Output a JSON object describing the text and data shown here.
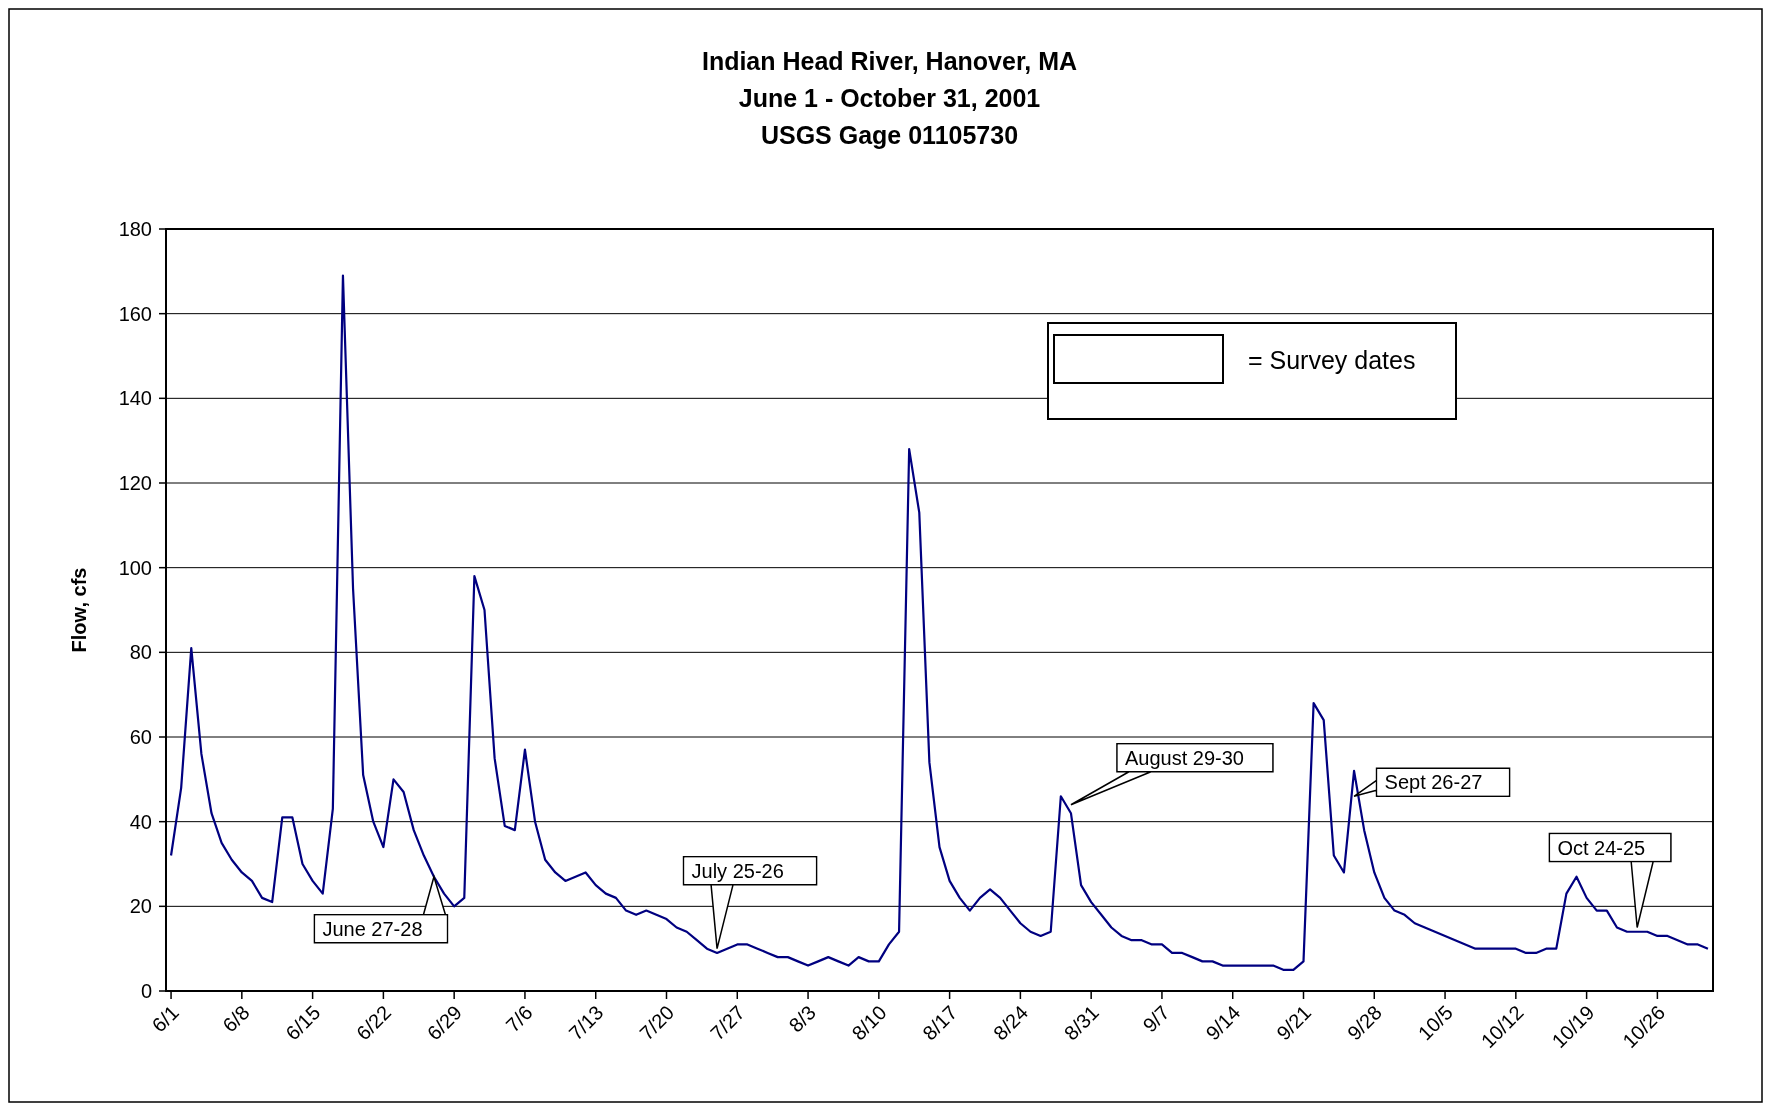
{
  "chart_data": {
    "type": "line",
    "title": "Indian Head River, Hanover, MA\nJune 1 - October 31, 2001\nUSGS Gage 01105730",
    "ylabel": "Flow, cfs",
    "x": [
      "2001-06-01",
      "2001-06-02",
      "2001-06-03",
      "2001-06-04",
      "2001-06-05",
      "2001-06-06",
      "2001-06-07",
      "2001-06-08",
      "2001-06-09",
      "2001-06-10",
      "2001-06-11",
      "2001-06-12",
      "2001-06-13",
      "2001-06-14",
      "2001-06-15",
      "2001-06-16",
      "2001-06-17",
      "2001-06-18",
      "2001-06-19",
      "2001-06-20",
      "2001-06-21",
      "2001-06-22",
      "2001-06-23",
      "2001-06-24",
      "2001-06-25",
      "2001-06-26",
      "2001-06-27",
      "2001-06-28",
      "2001-06-29",
      "2001-06-30",
      "2001-07-01",
      "2001-07-02",
      "2001-07-03",
      "2001-07-04",
      "2001-07-05",
      "2001-07-06",
      "2001-07-07",
      "2001-07-08",
      "2001-07-09",
      "2001-07-10",
      "2001-07-11",
      "2001-07-12",
      "2001-07-13",
      "2001-07-14",
      "2001-07-15",
      "2001-07-16",
      "2001-07-17",
      "2001-07-18",
      "2001-07-19",
      "2001-07-20",
      "2001-07-21",
      "2001-07-22",
      "2001-07-23",
      "2001-07-24",
      "2001-07-25",
      "2001-07-26",
      "2001-07-27",
      "2001-07-28",
      "2001-07-29",
      "2001-07-30",
      "2001-07-31",
      "2001-08-01",
      "2001-08-02",
      "2001-08-03",
      "2001-08-04",
      "2001-08-05",
      "2001-08-06",
      "2001-08-07",
      "2001-08-08",
      "2001-08-09",
      "2001-08-10",
      "2001-08-11",
      "2001-08-12",
      "2001-08-13",
      "2001-08-14",
      "2001-08-15",
      "2001-08-16",
      "2001-08-17",
      "2001-08-18",
      "2001-08-19",
      "2001-08-20",
      "2001-08-21",
      "2001-08-22",
      "2001-08-23",
      "2001-08-24",
      "2001-08-25",
      "2001-08-26",
      "2001-08-27",
      "2001-08-28",
      "2001-08-29",
      "2001-08-30",
      "2001-08-31",
      "2001-09-01",
      "2001-09-02",
      "2001-09-03",
      "2001-09-04",
      "2001-09-05",
      "2001-09-06",
      "2001-09-07",
      "2001-09-08",
      "2001-09-09",
      "2001-09-10",
      "2001-09-11",
      "2001-09-12",
      "2001-09-13",
      "2001-09-14",
      "2001-09-15",
      "2001-09-16",
      "2001-09-17",
      "2001-09-18",
      "2001-09-19",
      "2001-09-20",
      "2001-09-21",
      "2001-09-22",
      "2001-09-23",
      "2001-09-24",
      "2001-09-25",
      "2001-09-26",
      "2001-09-27",
      "2001-09-28",
      "2001-09-29",
      "2001-09-30",
      "2001-10-01",
      "2001-10-02",
      "2001-10-03",
      "2001-10-04",
      "2001-10-05",
      "2001-10-06",
      "2001-10-07",
      "2001-10-08",
      "2001-10-09",
      "2001-10-10",
      "2001-10-11",
      "2001-10-12",
      "2001-10-13",
      "2001-10-14",
      "2001-10-15",
      "2001-10-16",
      "2001-10-17",
      "2001-10-18",
      "2001-10-19",
      "2001-10-20",
      "2001-10-21",
      "2001-10-22",
      "2001-10-23",
      "2001-10-24",
      "2001-10-25",
      "2001-10-26",
      "2001-10-27",
      "2001-10-28",
      "2001-10-29",
      "2001-10-30",
      "2001-10-31"
    ],
    "series": [
      {
        "color": "#000080",
        "values": [
          32,
          48,
          81,
          56,
          42,
          35,
          31,
          28,
          26,
          22,
          21,
          41,
          41,
          30,
          26,
          23,
          43,
          169,
          95,
          51,
          40,
          34,
          50,
          47,
          38,
          32,
          27,
          23,
          20,
          22,
          98,
          90,
          55,
          39,
          38,
          57,
          40,
          31,
          28,
          26,
          27,
          28,
          25,
          23,
          22,
          19,
          18,
          19,
          18,
          17,
          15,
          14,
          12,
          10,
          9,
          10,
          11,
          11,
          10,
          9,
          8,
          8,
          7,
          6,
          7,
          8,
          7,
          6,
          8,
          7,
          7,
          11,
          14,
          128,
          113,
          54,
          34,
          26,
          22,
          19,
          22,
          24,
          22,
          19,
          16,
          14,
          13,
          14,
          46,
          42,
          25,
          21,
          18,
          15,
          13,
          12,
          12,
          11,
          11,
          9,
          9,
          8,
          7,
          7,
          6,
          6,
          6,
          6,
          6,
          6,
          5,
          5,
          7,
          68,
          64,
          32,
          28,
          52,
          38,
          28,
          22,
          19,
          18,
          16,
          15,
          14,
          13,
          12,
          11,
          10,
          10,
          10,
          10,
          10,
          9,
          9,
          10,
          10,
          23,
          27,
          22,
          19,
          19,
          15,
          14,
          14,
          14,
          13,
          13,
          12,
          11,
          11,
          10
        ]
      }
    ],
    "xlim": [
      "2001-05-31T12:00",
      "2001-10-31T12:00"
    ],
    "xticks": [
      {
        "value": "2001-06-01",
        "label": "6/1"
      },
      {
        "value": "2001-06-08",
        "label": "6/8"
      },
      {
        "value": "2001-06-15",
        "label": "6/15"
      },
      {
        "value": "2001-06-22",
        "label": "6/22"
      },
      {
        "value": "2001-06-29",
        "label": "6/29"
      },
      {
        "value": "2001-07-06",
        "label": "7/6"
      },
      {
        "value": "2001-07-13",
        "label": "7/13"
      },
      {
        "value": "2001-07-20",
        "label": "7/20"
      },
      {
        "value": "2001-07-27",
        "label": "7/27"
      },
      {
        "value": "2001-08-03",
        "label": "8/3"
      },
      {
        "value": "2001-08-10",
        "label": "8/10"
      },
      {
        "value": "2001-08-17",
        "label": "8/17"
      },
      {
        "value": "2001-08-24",
        "label": "8/24"
      },
      {
        "value": "2001-08-31",
        "label": "8/31"
      },
      {
        "value": "2001-09-07",
        "label": "9/7"
      },
      {
        "value": "2001-09-14",
        "label": "9/14"
      },
      {
        "value": "2001-09-21",
        "label": "9/21"
      },
      {
        "value": "2001-09-28",
        "label": "9/28"
      },
      {
        "value": "2001-10-05",
        "label": "10/5"
      },
      {
        "value": "2001-10-12",
        "label": "10/12"
      },
      {
        "value": "2001-10-19",
        "label": "10/19"
      },
      {
        "value": "2001-10-26",
        "label": "10/26"
      }
    ],
    "ylim": [
      0,
      180
    ],
    "yticks": [
      0,
      20,
      40,
      60,
      80,
      100,
      120,
      140,
      160,
      180
    ],
    "grid": "y",
    "annotations": [
      "= Survey dates",
      {
        "text": "June 27-28",
        "x": "2001-06-27",
        "y": 27
      },
      {
        "text": "July 25-26",
        "x": "2001-07-25",
        "y": 10
      },
      {
        "text": "August 29-30",
        "x": "2001-08-29",
        "y": 44
      },
      {
        "text": "Sept 26-27",
        "x": "2001-09-26",
        "y": 46
      },
      {
        "text": "Oct 24-25",
        "x": "2001-10-24",
        "y": 15
      }
    ]
  }
}
